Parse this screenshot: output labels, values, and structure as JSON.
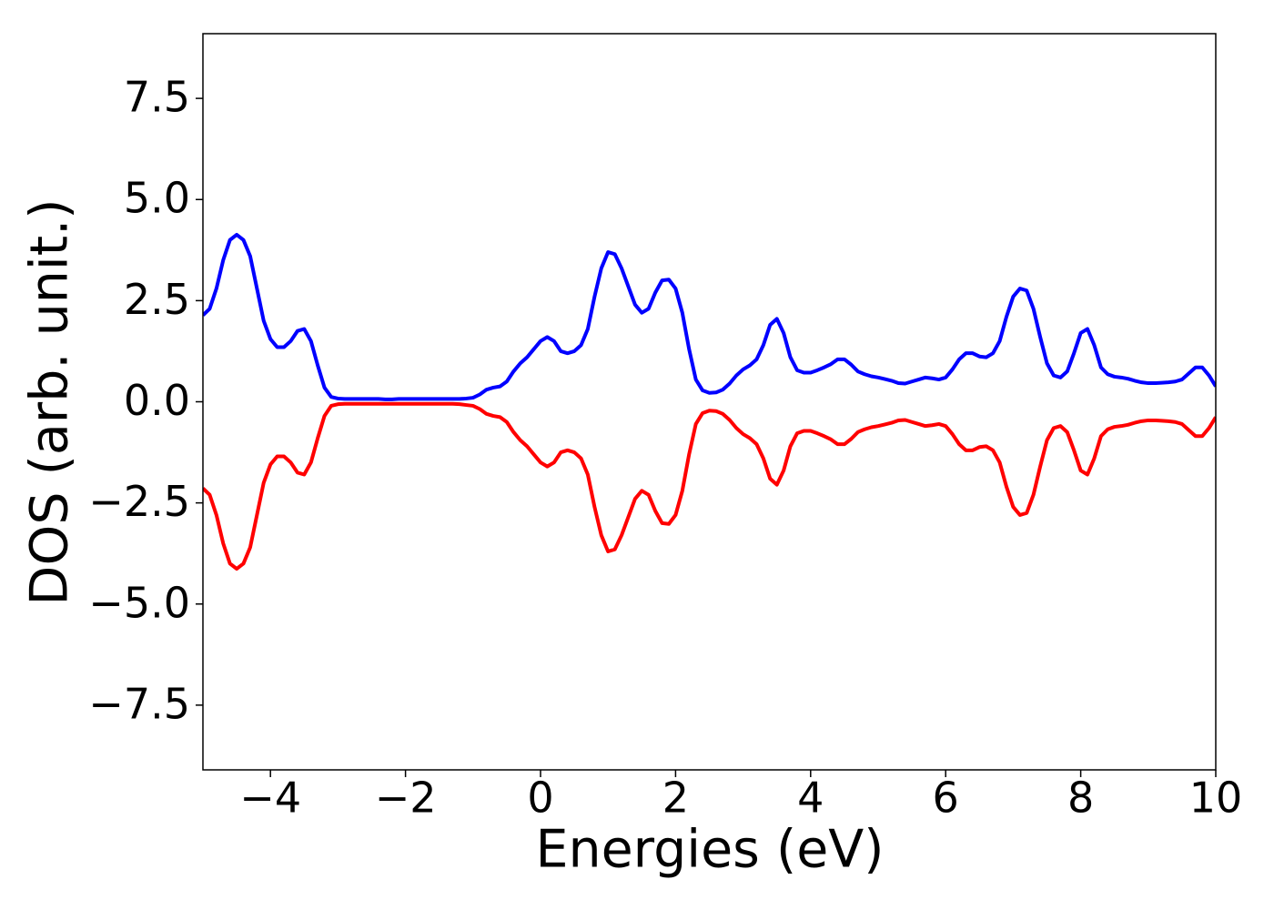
{
  "chart_data": {
    "type": "line",
    "xlabel": "Energies (eV)",
    "ylabel": "DOS (arb. unit.)",
    "xlim": [
      -5,
      10
    ],
    "ylim": [
      -9.1,
      9.1
    ],
    "xticks": [
      {
        "value": -4,
        "label": "−4"
      },
      {
        "value": -2,
        "label": "−2"
      },
      0,
      2,
      4,
      6,
      8,
      10
    ],
    "yticks": [
      {
        "value": -7.5,
        "label": "−7.5"
      },
      {
        "value": -5,
        "label": "−5.0"
      },
      {
        "value": -2.5,
        "label": "−2.5"
      },
      {
        "value": 0,
        "label": "0.0"
      },
      2.5,
      {
        "value": 5,
        "label": "5.0"
      },
      7.5
    ],
    "grid": false,
    "x": [
      -5,
      -4.9,
      -4.8,
      -4.7,
      -4.6,
      -4.5,
      -4.4,
      -4.3,
      -4.2,
      -4.1,
      -4,
      -3.9,
      -3.8,
      -3.7,
      -3.6,
      -3.5,
      -3.4,
      -3.3,
      -3.2,
      -3.1,
      -3,
      -2.9,
      -2.8,
      -2.7,
      -2.6,
      -2.5,
      -2.4,
      -2.3,
      -2.2,
      -2.1,
      -2,
      -1.9,
      -1.8,
      -1.7,
      -1.6,
      -1.5,
      -1.4,
      -1.3,
      -1.2,
      -1.1,
      -1,
      -0.9,
      -0.8,
      -0.7,
      -0.6,
      -0.5,
      -0.4,
      -0.3,
      -0.2,
      -0.1,
      0,
      0.1,
      0.2,
      0.3,
      0.4,
      0.5,
      0.6,
      0.7,
      0.8,
      0.9,
      1,
      1.1,
      1.2,
      1.3,
      1.4,
      1.5,
      1.6,
      1.7,
      1.8,
      1.9,
      2,
      2.1,
      2.2,
      2.3,
      2.4,
      2.5,
      2.6,
      2.7,
      2.8,
      2.9,
      3,
      3.1,
      3.2,
      3.3,
      3.4,
      3.5,
      3.6,
      3.7,
      3.8,
      3.9,
      4,
      4.1,
      4.2,
      4.3,
      4.4,
      4.5,
      4.6,
      4.7,
      4.8,
      4.9,
      5,
      5.1,
      5.2,
      5.3,
      5.4,
      5.5,
      5.6,
      5.7,
      5.8,
      5.9,
      6,
      6.1,
      6.2,
      6.3,
      6.4,
      6.5,
      6.6,
      6.7,
      6.8,
      6.9,
      7,
      7.1,
      7.2,
      7.3,
      7.4,
      7.5,
      7.6,
      7.7,
      7.8,
      7.9,
      8,
      8.1,
      8.2,
      8.3,
      8.4,
      8.5,
      8.6,
      8.7,
      8.8,
      8.9,
      9,
      9.1,
      9.2,
      9.3,
      9.4,
      9.5,
      9.6,
      9.7,
      9.8,
      9.9,
      10
    ],
    "series": [
      {
        "color": "#0000ff",
        "values": [
          2.14,
          2.3,
          2.8,
          3.5,
          4.0,
          4.13,
          4.0,
          3.6,
          2.8,
          2.0,
          1.55,
          1.35,
          1.35,
          1.5,
          1.75,
          1.8,
          1.5,
          0.9,
          0.35,
          0.12,
          0.08,
          0.07,
          0.07,
          0.07,
          0.07,
          0.07,
          0.07,
          0.06,
          0.06,
          0.07,
          0.07,
          0.07,
          0.07,
          0.07,
          0.07,
          0.07,
          0.07,
          0.07,
          0.07,
          0.08,
          0.1,
          0.18,
          0.3,
          0.35,
          0.38,
          0.5,
          0.75,
          0.95,
          1.1,
          1.3,
          1.5,
          1.6,
          1.5,
          1.25,
          1.2,
          1.25,
          1.4,
          1.8,
          2.6,
          3.3,
          3.7,
          3.65,
          3.3,
          2.85,
          2.4,
          2.2,
          2.3,
          2.7,
          3.0,
          3.02,
          2.8,
          2.2,
          1.3,
          0.55,
          0.28,
          0.22,
          0.23,
          0.3,
          0.45,
          0.65,
          0.8,
          0.9,
          1.05,
          1.4,
          1.9,
          2.05,
          1.7,
          1.1,
          0.78,
          0.72,
          0.72,
          0.78,
          0.85,
          0.93,
          1.05,
          1.05,
          0.92,
          0.75,
          0.68,
          0.63,
          0.6,
          0.56,
          0.52,
          0.46,
          0.45,
          0.5,
          0.55,
          0.6,
          0.58,
          0.55,
          0.6,
          0.8,
          1.05,
          1.2,
          1.2,
          1.12,
          1.1,
          1.2,
          1.5,
          2.1,
          2.6,
          2.8,
          2.75,
          2.3,
          1.6,
          0.95,
          0.65,
          0.6,
          0.75,
          1.2,
          1.7,
          1.8,
          1.4,
          0.85,
          0.68,
          0.62,
          0.6,
          0.57,
          0.52,
          0.48,
          0.46,
          0.46,
          0.47,
          0.48,
          0.5,
          0.55,
          0.7,
          0.85,
          0.85,
          0.65,
          0.38
        ]
      },
      {
        "color": "#ff0000",
        "values": [
          -2.14,
          -2.3,
          -2.8,
          -3.5,
          -4.0,
          -4.13,
          -4.0,
          -3.6,
          -2.8,
          -2.0,
          -1.55,
          -1.35,
          -1.35,
          -1.5,
          -1.75,
          -1.8,
          -1.5,
          -0.9,
          -0.35,
          -0.1,
          -0.06,
          -0.05,
          -0.05,
          -0.05,
          -0.05,
          -0.05,
          -0.05,
          -0.05,
          -0.05,
          -0.05,
          -0.05,
          -0.05,
          -0.05,
          -0.05,
          -0.05,
          -0.05,
          -0.05,
          -0.05,
          -0.06,
          -0.08,
          -0.1,
          -0.18,
          -0.3,
          -0.35,
          -0.38,
          -0.5,
          -0.75,
          -0.95,
          -1.1,
          -1.3,
          -1.5,
          -1.6,
          -1.5,
          -1.25,
          -1.2,
          -1.25,
          -1.4,
          -1.8,
          -2.6,
          -3.3,
          -3.7,
          -3.65,
          -3.3,
          -2.85,
          -2.4,
          -2.2,
          -2.3,
          -2.7,
          -3.0,
          -3.02,
          -2.8,
          -2.2,
          -1.3,
          -0.55,
          -0.28,
          -0.22,
          -0.23,
          -0.3,
          -0.45,
          -0.65,
          -0.8,
          -0.9,
          -1.05,
          -1.4,
          -1.9,
          -2.05,
          -1.7,
          -1.1,
          -0.78,
          -0.72,
          -0.72,
          -0.78,
          -0.85,
          -0.93,
          -1.05,
          -1.05,
          -0.92,
          -0.75,
          -0.68,
          -0.63,
          -0.6,
          -0.56,
          -0.52,
          -0.46,
          -0.45,
          -0.5,
          -0.55,
          -0.6,
          -0.58,
          -0.55,
          -0.6,
          -0.8,
          -1.05,
          -1.2,
          -1.2,
          -1.12,
          -1.1,
          -1.2,
          -1.5,
          -2.1,
          -2.6,
          -2.8,
          -2.75,
          -2.3,
          -1.6,
          -0.95,
          -0.65,
          -0.6,
          -0.75,
          -1.2,
          -1.7,
          -1.8,
          -1.4,
          -0.85,
          -0.68,
          -0.62,
          -0.6,
          -0.57,
          -0.52,
          -0.48,
          -0.46,
          -0.46,
          -0.47,
          -0.48,
          -0.5,
          -0.55,
          -0.7,
          -0.85,
          -0.85,
          -0.65,
          -0.38
        ]
      }
    ]
  }
}
